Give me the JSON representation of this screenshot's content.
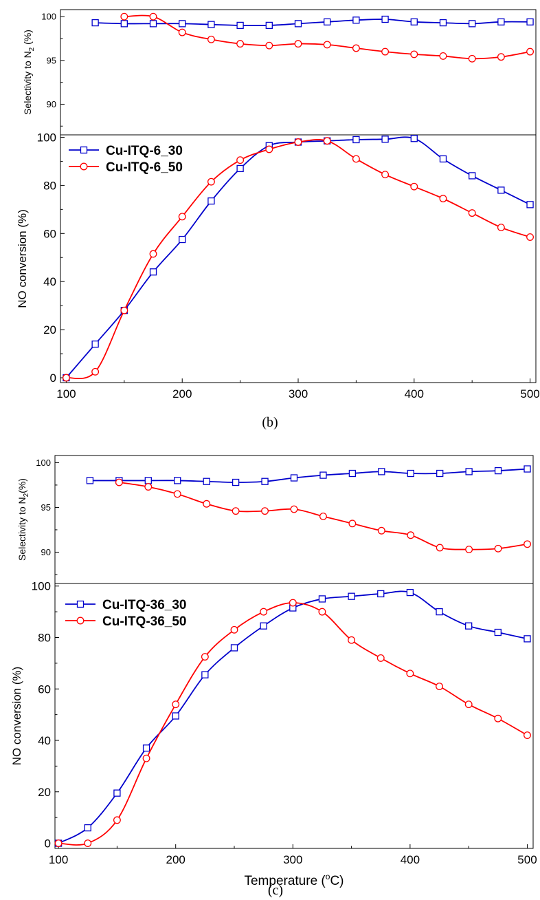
{
  "panel_labels": {
    "b": "(b)",
    "c": "(c)"
  },
  "chart_data": [
    {
      "id": "b-top",
      "panel": "b",
      "type": "line",
      "ylabel_main": "Selectivity to N",
      "ylabel_sub": "2",
      "ylabel_tail": " (%)",
      "xlim": [
        95,
        505
      ],
      "ylim": [
        86.5,
        100.8
      ],
      "yticks": [
        90,
        95,
        100
      ],
      "series": [
        {
          "name": "Cu-ITQ-6_30",
          "color": "#0000cc",
          "marker": "square",
          "x": [
            125,
            150,
            175,
            200,
            225,
            250,
            275,
            300,
            325,
            350,
            375,
            400,
            425,
            450,
            475,
            500
          ],
          "y": [
            99.3,
            99.2,
            99.2,
            99.2,
            99.1,
            99.0,
            99.0,
            99.2,
            99.4,
            99.6,
            99.7,
            99.4,
            99.3,
            99.2,
            99.4,
            99.4
          ]
        },
        {
          "name": "Cu-ITQ-6_50",
          "color": "#ff0000",
          "marker": "circle",
          "x": [
            150,
            175,
            200,
            225,
            250,
            275,
            300,
            325,
            350,
            375,
            400,
            425,
            450,
            475,
            500
          ],
          "y": [
            100,
            100,
            98.2,
            97.4,
            96.9,
            96.7,
            96.9,
            96.8,
            96.4,
            96.0,
            95.7,
            95.5,
            95.2,
            95.4,
            96.0
          ]
        }
      ]
    },
    {
      "id": "b-bottom",
      "panel": "b",
      "type": "line",
      "ylabel": "NO conversion (%)",
      "xlim": [
        95,
        505
      ],
      "ylim": [
        -2,
        101
      ],
      "xticks": [
        100,
        200,
        300,
        400,
        500
      ],
      "yticks": [
        0,
        20,
        40,
        60,
        80,
        100
      ],
      "legend": "top-left",
      "series": [
        {
          "name": "Cu-ITQ-6_30",
          "color": "#0000cc",
          "marker": "square",
          "x": [
            100,
            125,
            150,
            175,
            200,
            225,
            250,
            275,
            300,
            325,
            350,
            375,
            400,
            425,
            450,
            475,
            500
          ],
          "y": [
            0,
            14,
            28,
            44,
            57.5,
            73.5,
            87,
            96.5,
            98,
            98.5,
            99,
            99.2,
            99.5,
            91,
            84,
            78,
            72
          ]
        },
        {
          "name": "Cu-ITQ-6_50",
          "color": "#ff0000",
          "marker": "circle",
          "x": [
            100,
            125,
            150,
            175,
            200,
            225,
            250,
            275,
            300,
            325,
            350,
            375,
            400,
            425,
            450,
            475,
            500
          ],
          "y": [
            0,
            2.5,
            28,
            51.5,
            67,
            81.5,
            90.5,
            95,
            98,
            98.5,
            91,
            84.5,
            79.5,
            74.5,
            68.5,
            62.5,
            58.5
          ]
        }
      ]
    },
    {
      "id": "c-top",
      "panel": "c",
      "type": "line",
      "ylabel_main": "Selectivity to N",
      "ylabel_sub": "2",
      "ylabel_tail": "(%)",
      "xlim": [
        95,
        505
      ],
      "ylim": [
        86.5,
        100.8
      ],
      "yticks": [
        90,
        95,
        100
      ],
      "series": [
        {
          "name": "Cu-ITQ-36_30",
          "color": "#0000cc",
          "marker": "square",
          "x": [
            125,
            150,
            175,
            200,
            225,
            250,
            275,
            300,
            325,
            350,
            375,
            400,
            425,
            450,
            475,
            500
          ],
          "y": [
            98.0,
            98.0,
            98.0,
            98.0,
            97.9,
            97.8,
            97.9,
            98.3,
            98.6,
            98.8,
            99.0,
            98.8,
            98.8,
            99.0,
            99.1,
            99.3
          ]
        },
        {
          "name": "Cu-ITQ-36_50",
          "color": "#ff0000",
          "marker": "circle",
          "x": [
            150,
            175,
            200,
            225,
            250,
            275,
            300,
            325,
            350,
            375,
            400,
            425,
            450,
            475,
            500
          ],
          "y": [
            97.8,
            97.3,
            96.5,
            95.4,
            94.6,
            94.6,
            94.8,
            94.0,
            93.2,
            92.4,
            91.9,
            90.5,
            90.3,
            90.4,
            90.9
          ]
        }
      ]
    },
    {
      "id": "c-bottom",
      "panel": "c",
      "type": "line",
      "ylabel": "NO conversion (%)",
      "xlabel_main": "Temperature (",
      "xlabel_sup": "o",
      "xlabel_tail": "C)",
      "xlim": [
        97,
        505
      ],
      "ylim": [
        -2,
        101
      ],
      "xticks": [
        100,
        200,
        300,
        400,
        500
      ],
      "yticks": [
        0,
        20,
        40,
        60,
        80,
        100
      ],
      "legend": "top-left",
      "series": [
        {
          "name": "Cu-ITQ-36_30",
          "color": "#0000cc",
          "marker": "square",
          "x": [
            100,
            125,
            150,
            175,
            200,
            225,
            250,
            275,
            300,
            325,
            350,
            375,
            400,
            425,
            450,
            475,
            500
          ],
          "y": [
            0,
            6,
            19.5,
            37,
            49.5,
            65.5,
            76,
            84.5,
            91.5,
            95,
            96,
            97,
            97.5,
            90,
            84.5,
            82,
            79.5
          ]
        },
        {
          "name": "Cu-ITQ-36_50",
          "color": "#ff0000",
          "marker": "circle",
          "x": [
            100,
            125,
            150,
            175,
            200,
            225,
            250,
            275,
            300,
            325,
            350,
            375,
            400,
            425,
            450,
            475,
            500
          ],
          "y": [
            0,
            0,
            9,
            33,
            54,
            72.5,
            83,
            90,
            93.5,
            90,
            79,
            72,
            66,
            61,
            54,
            48.5,
            42
          ]
        }
      ]
    }
  ]
}
